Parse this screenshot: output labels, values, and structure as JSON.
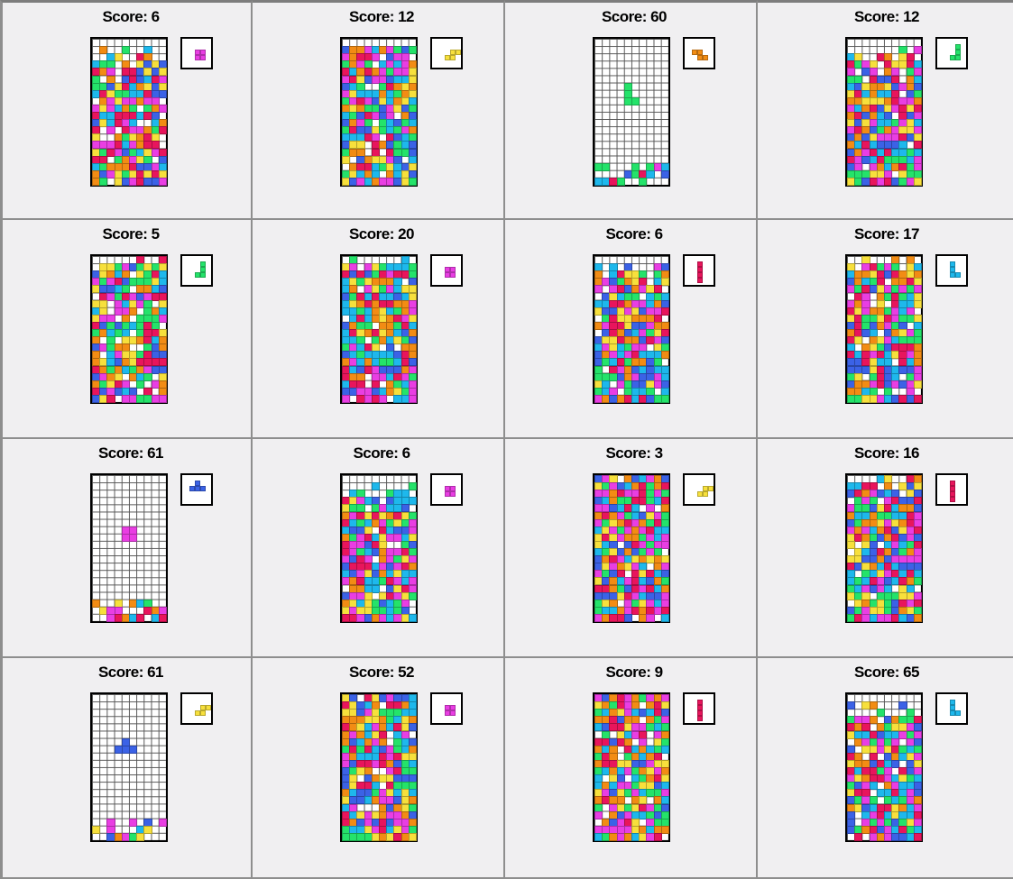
{
  "score_label_prefix": "Score: ",
  "palette": {
    "magenta": "#e93ee3",
    "yellow": "#f7e03c",
    "orange": "#f28c14",
    "green": "#24e36a",
    "red": "#e8155c",
    "cyan": "#1eb8ec",
    "blue": "#3b62e6"
  },
  "games": [
    {
      "score_text": "Score: 6",
      "score": 6,
      "next_piece": "O",
      "next_color": "magenta",
      "fill": "full",
      "stack_height": 17
    },
    {
      "score_text": "Score: 12",
      "score": 12,
      "next_piece": "S",
      "next_color": "yellow",
      "fill": "full",
      "stack_height": 19
    },
    {
      "score_text": "Score: 60",
      "score": 60,
      "next_piece": "Z",
      "next_color": "orange",
      "fill": "sparse",
      "stack_height": 3
    },
    {
      "score_text": "Score: 12",
      "score": 12,
      "next_piece": "J",
      "next_color": "green",
      "fill": "full",
      "stack_height": 17
    },
    {
      "score_text": "Score: 5",
      "score": 5,
      "next_piece": "J",
      "next_color": "green",
      "fill": "full",
      "stack_height": 19
    },
    {
      "score_text": "Score: 20",
      "score": 20,
      "next_piece": "O",
      "next_color": "magenta",
      "fill": "full",
      "stack_height": 19
    },
    {
      "score_text": "Score: 6",
      "score": 6,
      "next_piece": "I",
      "next_color": "red",
      "fill": "full",
      "stack_height": 18
    },
    {
      "score_text": "Score: 17",
      "score": 17,
      "next_piece": "L",
      "next_color": "cyan",
      "fill": "full",
      "stack_height": 19
    },
    {
      "score_text": "Score: 61",
      "score": 61,
      "next_piece": "T",
      "next_color": "blue",
      "fill": "sparse",
      "stack_height": 3
    },
    {
      "score_text": "Score: 6",
      "score": 6,
      "next_piece": "O",
      "next_color": "magenta",
      "fill": "full",
      "stack_height": 17
    },
    {
      "score_text": "Score: 3",
      "score": 3,
      "next_piece": "S",
      "next_color": "yellow",
      "fill": "full",
      "stack_height": 20
    },
    {
      "score_text": "Score: 16",
      "score": 16,
      "next_piece": "I",
      "next_color": "red",
      "fill": "full",
      "stack_height": 19
    },
    {
      "score_text": "Score: 61",
      "score": 61,
      "next_piece": "S",
      "next_color": "yellow",
      "fill": "sparse",
      "stack_height": 3
    },
    {
      "score_text": "Score: 52",
      "score": 52,
      "next_piece": "O",
      "next_color": "magenta",
      "fill": "full",
      "stack_height": 20
    },
    {
      "score_text": "Score: 9",
      "score": 9,
      "next_piece": "I",
      "next_color": "red",
      "fill": "full",
      "stack_height": 20
    },
    {
      "score_text": "Score: 65",
      "score": 65,
      "next_piece": "L",
      "next_color": "cyan",
      "fill": "full",
      "stack_height": 17
    }
  ]
}
